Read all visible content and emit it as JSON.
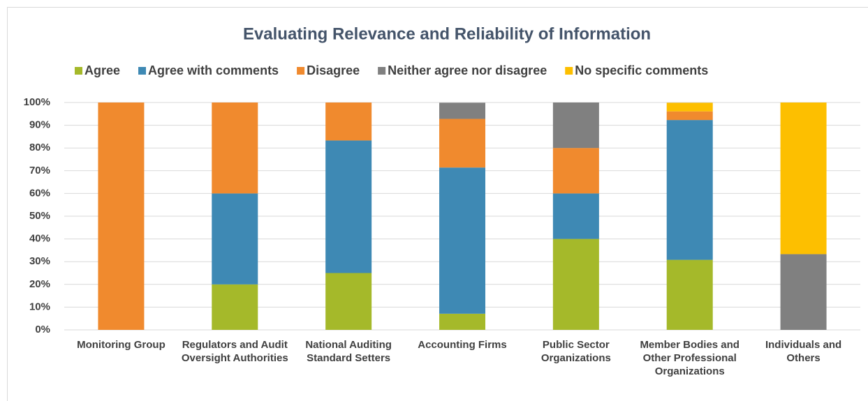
{
  "chart_data": {
    "type": "stacked_bar",
    "title": "Evaluating Relevance and Reliability of Information",
    "categories": [
      "Monitoring Group",
      "Regulators and Audit Oversight Authorities",
      "National Auditing Standard Setters",
      "Accounting Firms",
      "Public Sector Organizations",
      "Member Bodies and Other Professional Organizations",
      "Individuals and Others"
    ],
    "series": [
      {
        "name": "Agree",
        "color": "#a5b92a",
        "values": [
          0,
          20,
          25,
          7.1,
          40,
          30.8,
          0
        ]
      },
      {
        "name": "Agree with comments",
        "color": "#3e89b4",
        "values": [
          0,
          40,
          58.3,
          64.3,
          20,
          61.5,
          0
        ]
      },
      {
        "name": "Disagree",
        "color": "#f08a2e",
        "values": [
          100,
          40,
          16.7,
          21.4,
          20,
          3.8,
          0
        ]
      },
      {
        "name": "Neither agree nor disagree",
        "color": "#808080",
        "values": [
          0,
          0,
          0,
          7.1,
          20,
          0,
          33.3
        ]
      },
      {
        "name": "No specific comments",
        "color": "#fdbf00",
        "values": [
          0,
          0,
          0,
          0,
          0,
          3.8,
          66.7
        ]
      }
    ],
    "ylim": [
      0,
      100
    ],
    "yticks": [
      {
        "value": 0,
        "label": "0%"
      },
      {
        "value": 10,
        "label": "10%"
      },
      {
        "value": 20,
        "label": "20%"
      },
      {
        "value": 30,
        "label": "30%"
      },
      {
        "value": 40,
        "label": "40%"
      },
      {
        "value": 50,
        "label": "50%"
      },
      {
        "value": 60,
        "label": "60%"
      },
      {
        "value": 70,
        "label": "70%"
      },
      {
        "value": 80,
        "label": "80%"
      },
      {
        "value": 90,
        "label": "90%"
      },
      {
        "value": 100,
        "label": "100%"
      }
    ],
    "grid": true,
    "legend": "top"
  }
}
